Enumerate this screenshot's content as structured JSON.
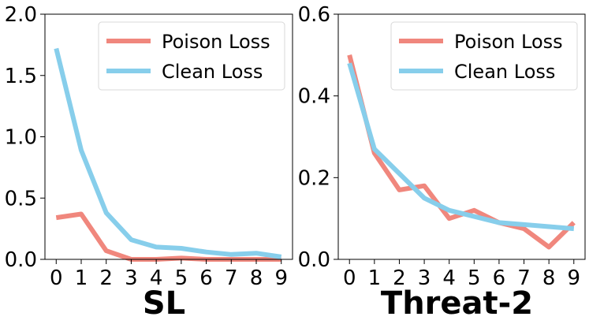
{
  "chart_data": [
    {
      "type": "line",
      "title": "SL",
      "xlabel": "SL",
      "ylabel": "",
      "x": [
        0,
        1,
        2,
        3,
        4,
        5,
        6,
        7,
        8,
        9
      ],
      "xlim": [
        -0.45,
        9.45
      ],
      "ylim": [
        0,
        2.0
      ],
      "yticks": [
        0.0,
        0.5,
        1.0,
        1.5,
        2.0
      ],
      "ytick_labels": [
        "0.0",
        "0.5",
        "1.0",
        "1.5",
        "2.0"
      ],
      "xtick_labels": [
        "0",
        "1",
        "2",
        "3",
        "4",
        "5",
        "6",
        "7",
        "8",
        "9"
      ],
      "legend_position": "top-right",
      "series": [
        {
          "name": "Poison Loss",
          "color": "#f0877d",
          "values": [
            0.34,
            0.37,
            0.07,
            0.0,
            0.0,
            0.01,
            0.0,
            0.0,
            0.0,
            0.0
          ]
        },
        {
          "name": "Clean Loss",
          "color": "#87ceeb",
          "values": [
            1.72,
            0.89,
            0.38,
            0.16,
            0.1,
            0.09,
            0.06,
            0.04,
            0.05,
            0.02
          ]
        }
      ]
    },
    {
      "type": "line",
      "title": "Threat-2",
      "xlabel": "Threat-2",
      "ylabel": "",
      "x": [
        0,
        1,
        2,
        3,
        4,
        5,
        6,
        7,
        8,
        9
      ],
      "xlim": [
        -0.45,
        9.45
      ],
      "ylim": [
        0,
        0.6
      ],
      "yticks": [
        0.0,
        0.2,
        0.4,
        0.6
      ],
      "ytick_labels": [
        "0.0",
        "0.2",
        "0.4",
        "0.6"
      ],
      "xtick_labels": [
        "0",
        "1",
        "2",
        "3",
        "4",
        "5",
        "6",
        "7",
        "8",
        "9"
      ],
      "legend_position": "top-right",
      "series": [
        {
          "name": "Poison Loss",
          "color": "#f0877d",
          "values": [
            0.5,
            0.26,
            0.17,
            0.18,
            0.1,
            0.12,
            0.09,
            0.075,
            0.03,
            0.09
          ]
        },
        {
          "name": "Clean Loss",
          "color": "#87ceeb",
          "values": [
            0.48,
            0.27,
            0.21,
            0.15,
            0.12,
            0.105,
            0.09,
            0.085,
            0.08,
            0.075
          ]
        }
      ]
    }
  ]
}
